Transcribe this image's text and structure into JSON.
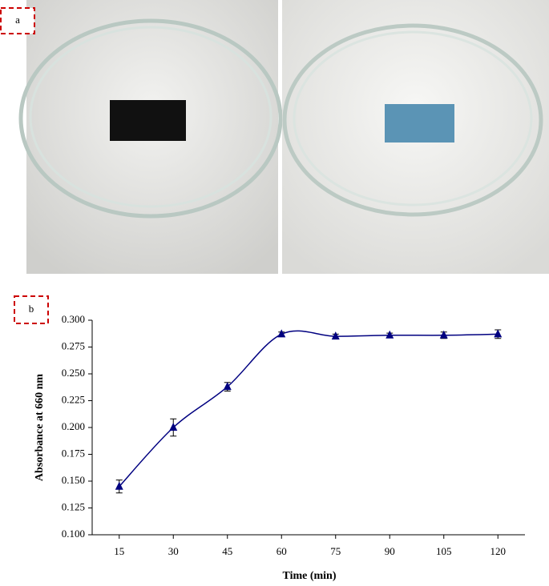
{
  "panel_labels": [
    "a",
    "b"
  ],
  "chart_data": {
    "type": "line",
    "x_label": "Time (min)",
    "y_label": "Absorbance at 660 nm",
    "x": [
      15,
      30,
      45,
      60,
      75,
      90,
      105,
      120
    ],
    "values": [
      0.145,
      0.2,
      0.238,
      0.287,
      0.285,
      0.286,
      0.286,
      0.287
    ],
    "errors": [
      0.006,
      0.008,
      0.004,
      0.002,
      0.002,
      0.002,
      0.003,
      0.004
    ],
    "color": "#000080",
    "xlim": [
      7.5,
      127.5
    ],
    "xticks": [
      15,
      30,
      45,
      60,
      75,
      90,
      105,
      120
    ],
    "ylim": [
      0.1,
      0.3
    ],
    "yticks": [
      {
        "value": 0.1,
        "label": "0.100"
      },
      {
        "value": 0.125,
        "label": "0.125"
      },
      {
        "value": 0.15,
        "label": "0.150"
      },
      {
        "value": 0.175,
        "label": "0.175"
      },
      {
        "value": 0.2,
        "label": "0.200"
      },
      {
        "value": 0.225,
        "label": "0.225"
      },
      {
        "value": 0.25,
        "label": "0.250"
      },
      {
        "value": 0.275,
        "label": "0.275"
      },
      {
        "value": 0.3,
        "label": "0.300"
      }
    ]
  }
}
